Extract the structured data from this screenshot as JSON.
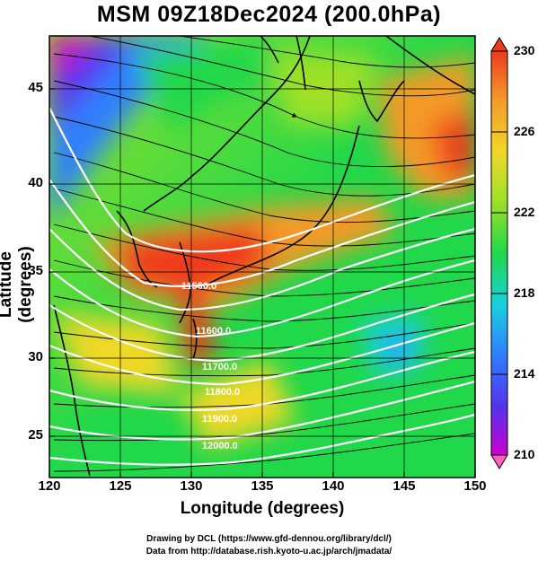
{
  "title": "MSM 09Z18Dec2024 (200.0hPa)",
  "axes": {
    "xlabel": "Longitude (degrees)",
    "ylabel": "Latitude  (degrees)",
    "xticks": [
      "120",
      "125",
      "130",
      "135",
      "140",
      "145",
      "150"
    ],
    "yticks": [
      "45",
      "40",
      "35",
      "30",
      "25"
    ]
  },
  "colorbar": {
    "ticks": [
      "230",
      "226",
      "222",
      "218",
      "214",
      "210"
    ],
    "min": 210,
    "max": 230,
    "colors": [
      "#cc00cc",
      "#5533ee",
      "#2f7fff",
      "#19d0e0",
      "#20d84a",
      "#9fe028",
      "#f0d828",
      "#f49a28",
      "#ee3a1e"
    ]
  },
  "contour_labels": [
    "11500.0",
    "11600.0",
    "11700.0",
    "11800.0",
    "11900.0",
    "12000.0"
  ],
  "extent": {
    "lon": [
      120,
      150
    ],
    "lat": [
      22.5,
      48
    ]
  },
  "credits": [
    "Drawing by DCL (https://www.gfd-dennou.org/library/dcl/)",
    "Data from http://database.rish.kyoto-u.ac.jp/arch/jmadata/"
  ]
}
